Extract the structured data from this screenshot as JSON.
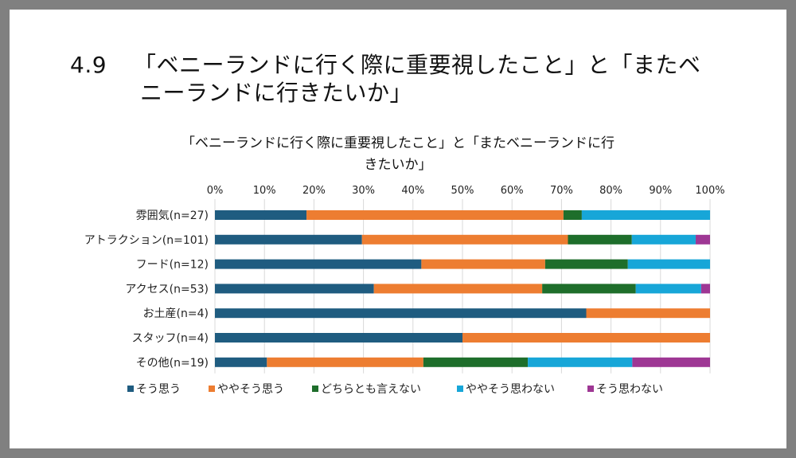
{
  "slide": {
    "number": "4.9",
    "title_line1": "「ベニーランドに行く際に重要視したこと」と「またベ",
    "title_line2": "ニーランドに行きたいか」"
  },
  "chart_data": {
    "type": "bar",
    "orientation": "horizontal",
    "stacked": "percent",
    "title_lines": [
      "「ベニーランドに行く際に重要視したこと」と「またベニーランドに行",
      "きたいか」"
    ],
    "categories": [
      "雰囲気(n=27)",
      "アトラクション(n=101)",
      "フード(n=12)",
      "アクセス(n=53)",
      "お土産(n=4)",
      "スタッフ(n=4)",
      "その他(n=19)"
    ],
    "x_ticks": [
      "0%",
      "10%",
      "20%",
      "30%",
      "40%",
      "50%",
      "60%",
      "70%",
      "80%",
      "90%",
      "100%"
    ],
    "xlim": [
      0,
      100
    ],
    "grid": true,
    "legend_position": "bottom",
    "series": [
      {
        "name": "そう思う",
        "color": "#1F5C80",
        "values": [
          18.5,
          29.7,
          41.7,
          32.1,
          75.0,
          50.0,
          10.5
        ]
      },
      {
        "name": "ややそう思う",
        "color": "#ED7D31",
        "values": [
          51.9,
          41.6,
          25.0,
          34.0,
          25.0,
          50.0,
          31.6
        ]
      },
      {
        "name": "どちらとも言えない",
        "color": "#1E6E2B",
        "values": [
          3.7,
          12.9,
          16.7,
          18.9,
          0,
          0,
          21.1
        ]
      },
      {
        "name": "ややそう思わない",
        "color": "#17A6D8",
        "values": [
          25.9,
          12.9,
          16.6,
          13.2,
          0,
          0,
          21.1
        ]
      },
      {
        "name": "そう思わない",
        "color": "#9E3794",
        "values": [
          0,
          2.9,
          0,
          1.8,
          0,
          0,
          15.7
        ]
      }
    ]
  }
}
